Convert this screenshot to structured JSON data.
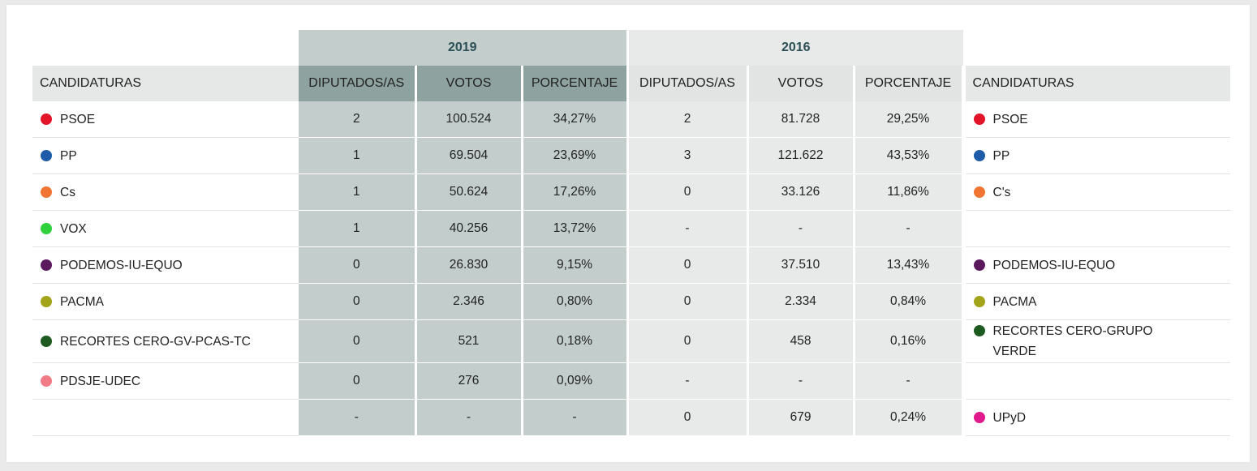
{
  "years": {
    "y2019": "2019",
    "y2016": "2016"
  },
  "headers": {
    "candidaturas": "CANDIDATURAS",
    "diputados": "DIPUTADOS/AS",
    "votos": "VOTOS",
    "porcentaje": "PORCENTAJE"
  },
  "colors": {
    "bg_2019_header": "#8ea3a0",
    "bg_2019_cells": "#c3cdcc",
    "bg_2016_cells": "#e8e9e9",
    "year_text": "#2a4f54"
  },
  "rows": [
    {
      "left": {
        "name": "PSOE",
        "color": "#e2142a"
      },
      "d2019": "2",
      "v2019": "100.524",
      "p2019": "34,27%",
      "d2016": "2",
      "v2016": "81.728",
      "p2016": "29,25%",
      "right": {
        "name": "PSOE",
        "color": "#e2142a"
      }
    },
    {
      "left": {
        "name": "PP",
        "color": "#1f5ba8"
      },
      "d2019": "1",
      "v2019": "69.504",
      "p2019": "23,69%",
      "d2016": "3",
      "v2016": "121.622",
      "p2016": "43,53%",
      "right": {
        "name": "PP",
        "color": "#1f5ba8"
      }
    },
    {
      "left": {
        "name": "Cs",
        "color": "#f07533"
      },
      "d2019": "1",
      "v2019": "50.624",
      "p2019": "17,26%",
      "d2016": "0",
      "v2016": "33.126",
      "p2016": "11,86%",
      "right": {
        "name": "C's",
        "color": "#f07533"
      }
    },
    {
      "left": {
        "name": "VOX",
        "color": "#2ed13a"
      },
      "d2019": "1",
      "v2019": "40.256",
      "p2019": "13,72%",
      "d2016": "-",
      "v2016": "-",
      "p2016": "-",
      "right": null
    },
    {
      "left": {
        "name": "PODEMOS-IU-EQUO",
        "color": "#5b1a5e"
      },
      "d2019": "0",
      "v2019": "26.830",
      "p2019": "9,15%",
      "d2016": "0",
      "v2016": "37.510",
      "p2016": "13,43%",
      "right": {
        "name": "PODEMOS-IU-EQUO",
        "color": "#5b1a5e"
      }
    },
    {
      "left": {
        "name": "PACMA",
        "color": "#a3a31c"
      },
      "d2019": "0",
      "v2019": "2.346",
      "p2019": "0,80%",
      "d2016": "0",
      "v2016": "2.334",
      "p2016": "0,84%",
      "right": {
        "name": "PACMA",
        "color": "#a3a31c"
      }
    },
    {
      "left": {
        "name": "RECORTES CERO-GV-PCAS-TC",
        "color": "#1d5a1f"
      },
      "d2019": "0",
      "v2019": "521",
      "p2019": "0,18%",
      "d2016": "0",
      "v2016": "458",
      "p2016": "0,16%",
      "right": {
        "name": "RECORTES CERO-GRUPO VERDE",
        "color": "#1d5a1f"
      }
    },
    {
      "left": {
        "name": "PDSJE-UDEC",
        "color": "#f27a86"
      },
      "d2019": "0",
      "v2019": "276",
      "p2019": "0,09%",
      "d2016": "-",
      "v2016": "-",
      "p2016": "-",
      "right": null
    },
    {
      "left": null,
      "d2019": "-",
      "v2019": "-",
      "p2019": "-",
      "d2016": "0",
      "v2016": "679",
      "p2016": "0,24%",
      "right": {
        "name": "UPyD",
        "color": "#e0198c"
      }
    }
  ]
}
